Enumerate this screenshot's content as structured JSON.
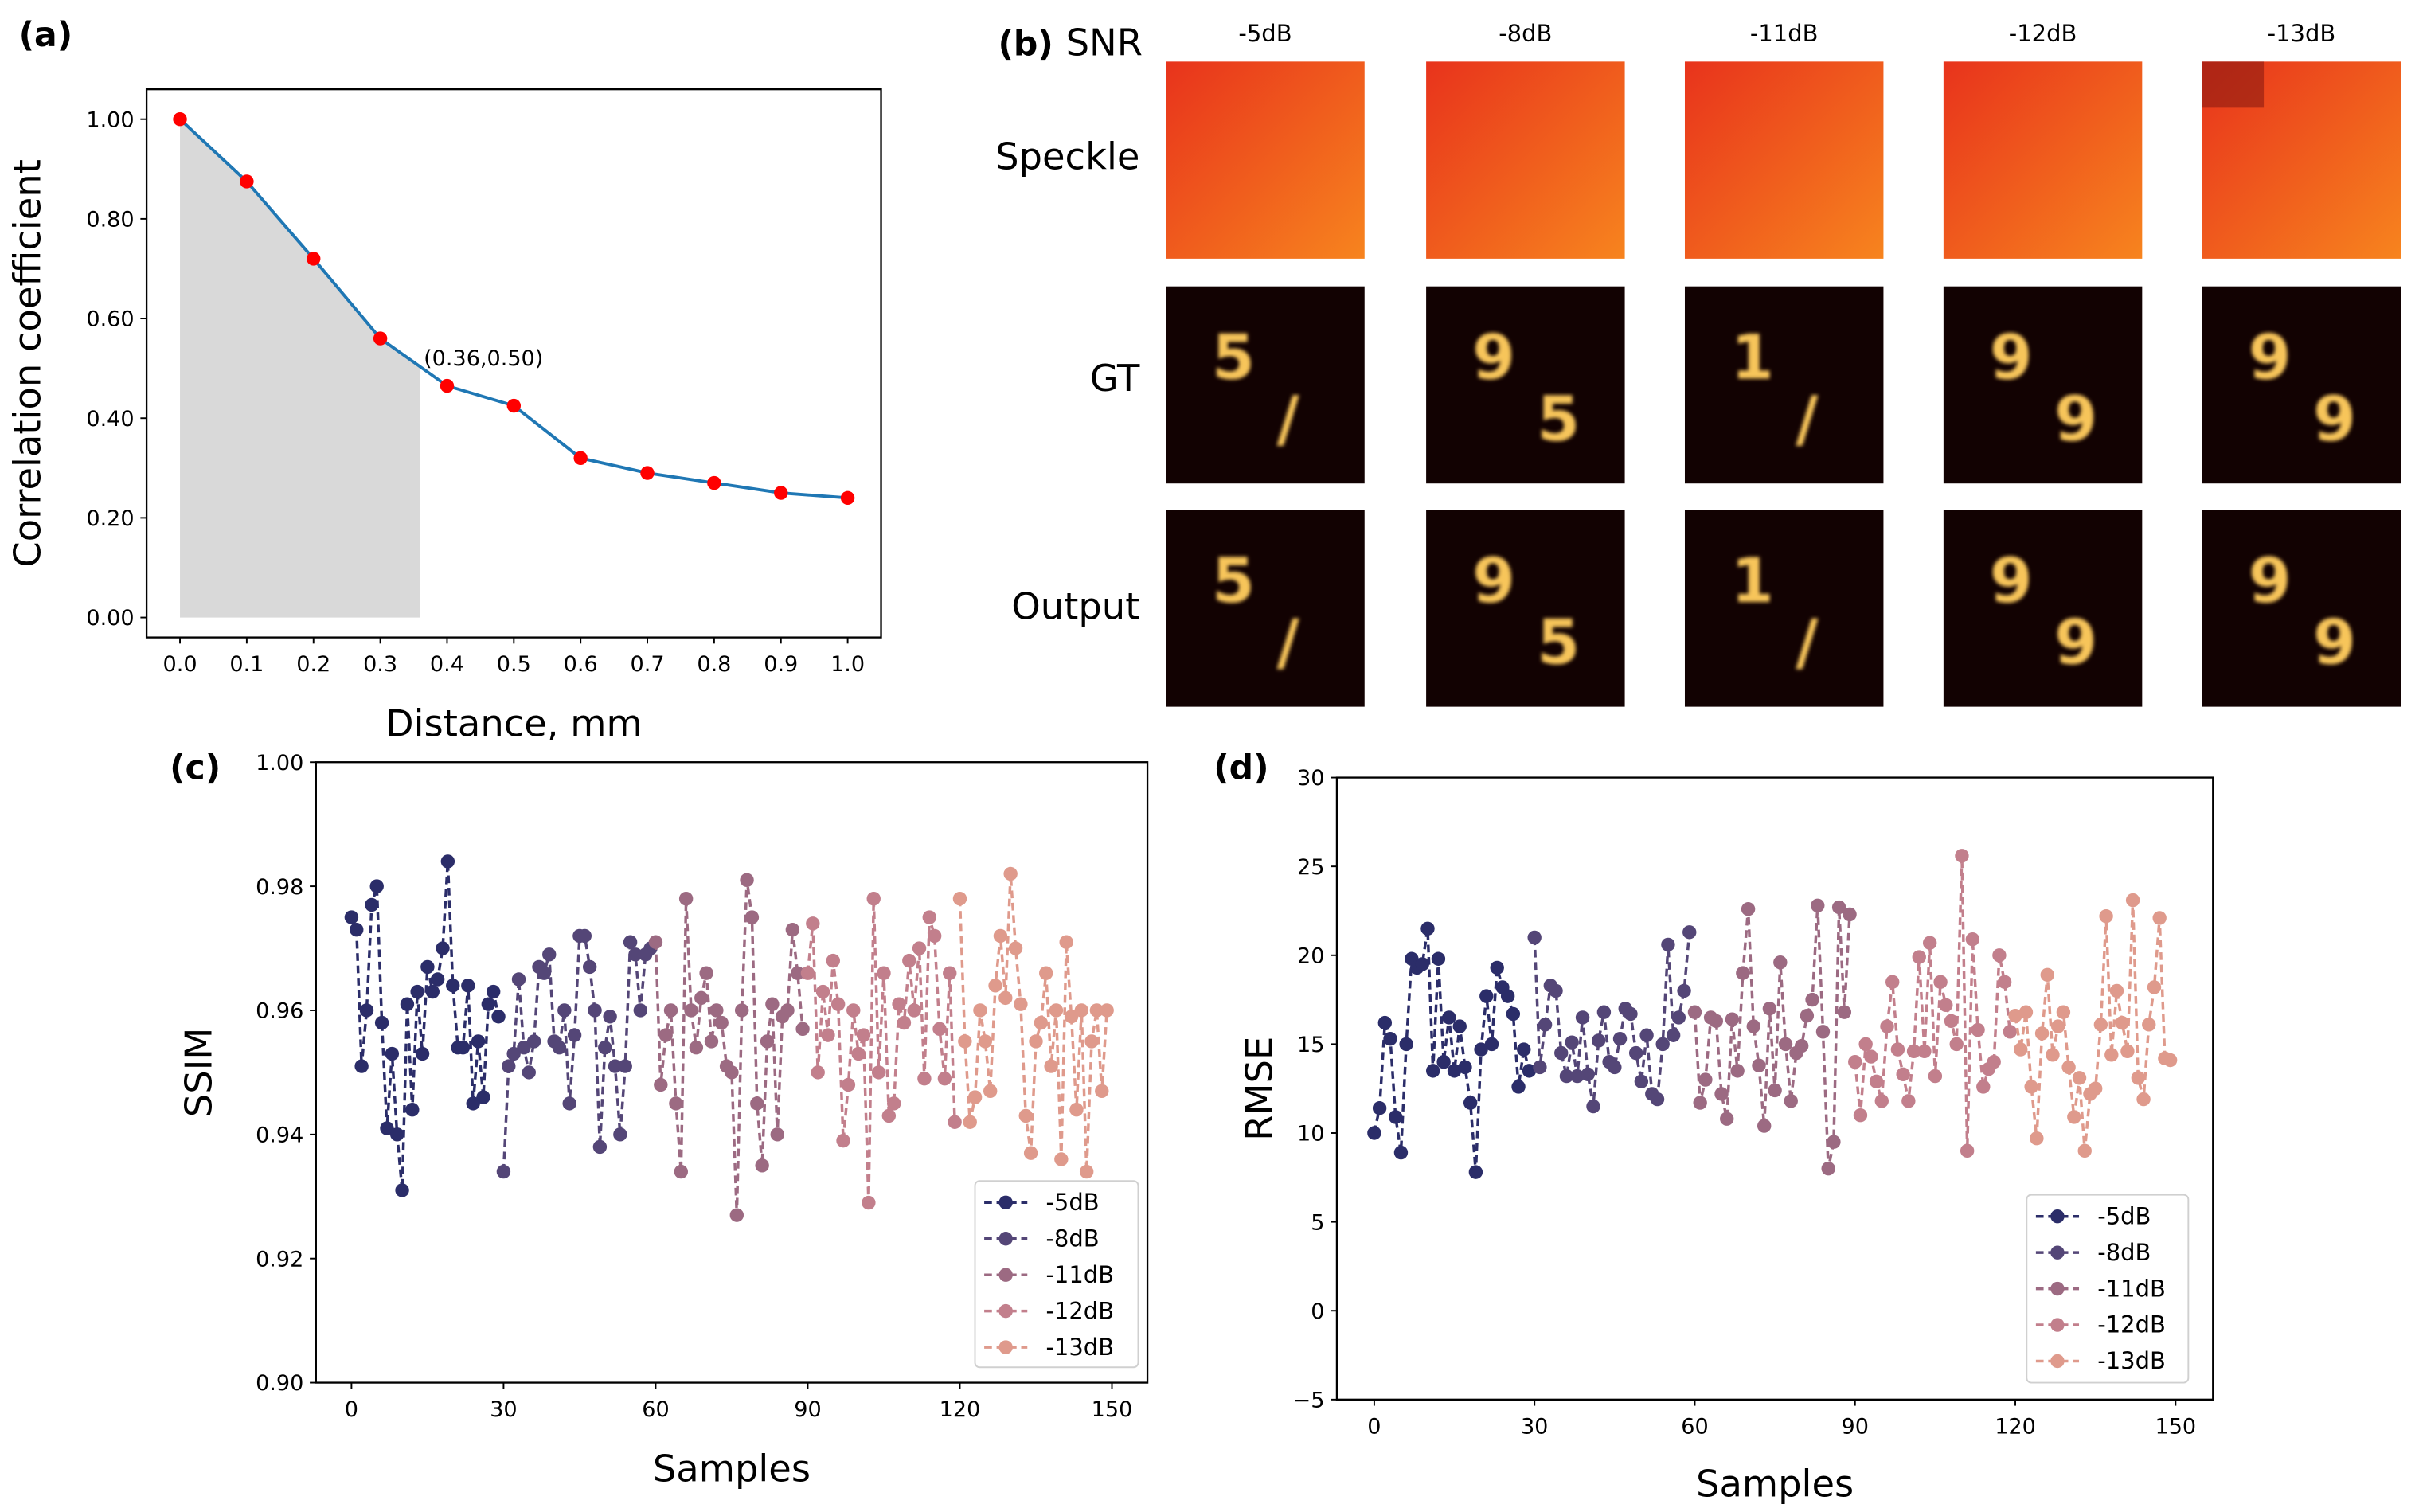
{
  "panel_labels": {
    "a": "(a)",
    "b": "(b)",
    "c": "(c)",
    "d": "(d)"
  },
  "panel_b": {
    "snr_label": "SNR",
    "row_labels": [
      "Speckle",
      "GT",
      "Output"
    ],
    "snr_levels": [
      "-5dB",
      "-8dB",
      "-11dB",
      "-12dB",
      "-13dB"
    ],
    "digits": [
      [
        "5",
        "/"
      ],
      [
        "9",
        "5"
      ],
      [
        "1",
        "/"
      ],
      [
        "9",
        "9"
      ],
      [
        "9",
        "9"
      ]
    ]
  },
  "chart_data": [
    {
      "type": "line",
      "id": "a",
      "xlabel": "Distance, mm",
      "ylabel": "Correlation coefficient",
      "x": [
        0.0,
        0.1,
        0.2,
        0.3,
        0.4,
        0.5,
        0.6,
        0.7,
        0.8,
        0.9,
        1.0
      ],
      "y": [
        1.0,
        0.875,
        0.72,
        0.56,
        0.465,
        0.425,
        0.32,
        0.29,
        0.27,
        0.25,
        0.24
      ],
      "xlim": [
        -0.05,
        1.05
      ],
      "ylim": [
        -0.04,
        1.06
      ],
      "xticks": [
        "0.0",
        "0.1",
        "0.2",
        "0.3",
        "0.4",
        "0.5",
        "0.6",
        "0.7",
        "0.8",
        "0.9",
        "1.0"
      ],
      "yticks": [
        "0.00",
        "0.20",
        "0.40",
        "0.60",
        "0.80",
        "1.00"
      ],
      "shaded_until_x": 0.36,
      "annotation": "(0.36,0.50)",
      "line_color": "#1f77b4",
      "marker_color": "#ff0000",
      "shade_color": "#d9d9d9"
    },
    {
      "type": "line",
      "id": "c",
      "xlabel": "Samples",
      "ylabel": "SSIM",
      "xlim": [
        -7,
        157
      ],
      "ylim": [
        0.9,
        1.0
      ],
      "xticks": [
        "0",
        "30",
        "60",
        "90",
        "120",
        "150"
      ],
      "yticks": [
        "0.90",
        "0.92",
        "0.94",
        "0.96",
        "0.98",
        "1.00"
      ],
      "legend": "lower-right",
      "series": [
        {
          "name": "-5dB",
          "color": "#2b2d69",
          "start": 0,
          "values": [
            0.975,
            0.973,
            0.951,
            0.96,
            0.977,
            0.98,
            0.958,
            0.941,
            0.953,
            0.94,
            0.931,
            0.961,
            0.944,
            0.963,
            0.953,
            0.967,
            0.963,
            0.965,
            0.97,
            0.984,
            0.964,
            0.954,
            0.954,
            0.964,
            0.945,
            0.955,
            0.946,
            0.961,
            0.963,
            0.959
          ]
        },
        {
          "name": "-8dB",
          "color": "#544677",
          "start": 30,
          "values": [
            0.934,
            0.951,
            0.953,
            0.965,
            0.954,
            0.95,
            0.955,
            0.967,
            0.966,
            0.969,
            0.955,
            0.954,
            0.96,
            0.945,
            0.956,
            0.972,
            0.972,
            0.967,
            0.96,
            0.938,
            0.954,
            0.959,
            0.951,
            0.94,
            0.951,
            0.971,
            0.969,
            0.96,
            0.969,
            0.97
          ]
        },
        {
          "name": "-11dB",
          "color": "#9c6a82",
          "start": 60,
          "values": [
            0.971,
            0.948,
            0.956,
            0.96,
            0.945,
            0.934,
            0.978,
            0.96,
            0.954,
            0.962,
            0.966,
            0.955,
            0.96,
            0.958,
            0.951,
            0.95,
            0.927,
            0.96,
            0.981,
            0.975,
            0.945,
            0.935,
            0.955,
            0.961,
            0.94,
            0.959,
            0.96,
            0.973,
            0.966,
            0.957
          ]
        },
        {
          "name": "-12dB",
          "color": "#c27f8c",
          "start": 90,
          "values": [
            0.966,
            0.974,
            0.95,
            0.963,
            0.956,
            0.968,
            0.961,
            0.939,
            0.948,
            0.96,
            0.953,
            0.956,
            0.929,
            0.978,
            0.95,
            0.966,
            0.943,
            0.945,
            0.961,
            0.958,
            0.968,
            0.96,
            0.97,
            0.949,
            0.975,
            0.972,
            0.957,
            0.949,
            0.966,
            0.942
          ]
        },
        {
          "name": "-13dB",
          "color": "#df9a8c",
          "start": 120,
          "values": [
            0.978,
            0.955,
            0.942,
            0.946,
            0.96,
            0.955,
            0.947,
            0.964,
            0.972,
            0.962,
            0.982,
            0.97,
            0.961,
            0.943,
            0.937,
            0.955,
            0.958,
            0.966,
            0.951,
            0.96,
            0.936,
            0.971,
            0.959,
            0.944,
            0.96,
            0.934,
            0.955,
            0.96,
            0.947,
            0.96
          ]
        }
      ]
    },
    {
      "type": "line",
      "id": "d",
      "xlabel": "Samples",
      "ylabel": "RMSE",
      "xlim": [
        -7,
        157
      ],
      "ylim": [
        -5,
        30
      ],
      "xticks": [
        "0",
        "30",
        "60",
        "90",
        "120",
        "150"
      ],
      "yticks": [
        "−5",
        "0",
        "5",
        "10",
        "15",
        "20",
        "25",
        "30"
      ],
      "legend": "lower-right",
      "series": [
        {
          "name": "-5dB",
          "color": "#2b2d69",
          "start": 0,
          "values": [
            10,
            11.4,
            16.2,
            15.3,
            10.9,
            8.9,
            15,
            19.8,
            19.3,
            19.5,
            21.5,
            13.5,
            19.8,
            14,
            16.5,
            13.5,
            16,
            13.7,
            11.7,
            7.8,
            14.7,
            17.7,
            15,
            19.3,
            18.2,
            17.7,
            16.7,
            12.6,
            14.7,
            13.5
          ]
        },
        {
          "name": "-8dB",
          "color": "#544677",
          "start": 30,
          "values": [
            21,
            13.7,
            16.1,
            18.3,
            18,
            14.5,
            13.2,
            15.1,
            13.2,
            16.5,
            13.3,
            11.5,
            15.2,
            16.8,
            14,
            13.7,
            15.3,
            17,
            16.7,
            14.5,
            12.9,
            15.5,
            12.2,
            11.9,
            15,
            20.6,
            15.5,
            16.5,
            18,
            21.3
          ]
        },
        {
          "name": "-11dB",
          "color": "#9c6a82",
          "start": 60,
          "values": [
            16.8,
            11.7,
            13,
            16.5,
            16.3,
            12.2,
            10.8,
            16.4,
            13.5,
            19,
            22.6,
            16,
            13.8,
            10.4,
            17,
            12.4,
            19.6,
            15,
            11.8,
            14.5,
            14.9,
            16.6,
            17.5,
            22.8,
            15.7,
            8,
            9.5,
            22.7,
            16.8,
            22.3
          ]
        },
        {
          "name": "-12dB",
          "color": "#c27f8c",
          "start": 90,
          "values": [
            14,
            11,
            15,
            14.3,
            12.9,
            11.8,
            16,
            18.5,
            14.7,
            13.3,
            11.8,
            14.6,
            19.9,
            14.6,
            20.7,
            13.2,
            18.5,
            17.2,
            16.3,
            15,
            25.6,
            9,
            20.9,
            15.8,
            12.6,
            13.6,
            14,
            20,
            18.5,
            15.7
          ]
        },
        {
          "name": "-13dB",
          "color": "#df9a8c",
          "start": 120,
          "values": [
            16.6,
            14.7,
            16.8,
            12.6,
            9.7,
            15.6,
            18.9,
            14.4,
            16,
            16.8,
            13.7,
            10.9,
            13.1,
            9,
            12.2,
            12.5,
            16.1,
            22.2,
            14.4,
            18,
            16.2,
            14.6,
            23.1,
            13.1,
            11.9,
            16.1,
            18.2,
            22.1,
            14.2,
            14.1
          ]
        }
      ]
    }
  ]
}
